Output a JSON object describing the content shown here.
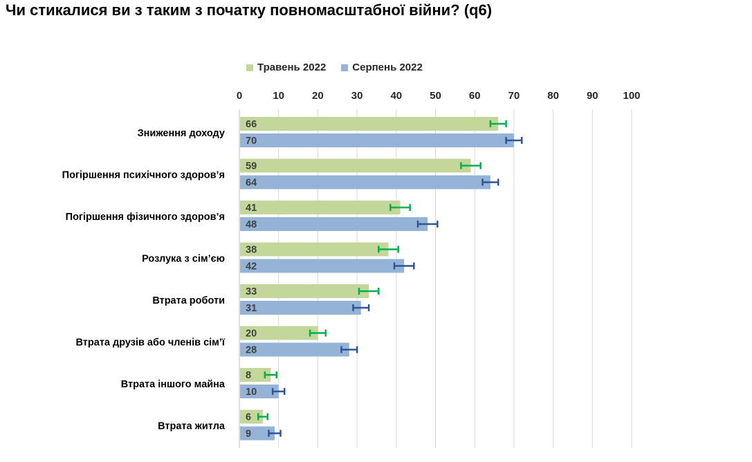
{
  "title": "Чи стикалися ви з таким з початку повномасштабної війни? (q6)",
  "chart_data": {
    "type": "bar",
    "orientation": "horizontal",
    "categories": [
      "Зниження доходу",
      "Погіршення психічного здоров’я",
      "Погіршення фізичного здоров’я",
      "Розлука з сім’єю",
      "Втрата роботи",
      "Втрата друзів або членів сім’ї",
      "Втрата іншого майна",
      "Втрата житла"
    ],
    "series": [
      {
        "name": "Травень 2022",
        "color": "#c4d79b",
        "error_color": "#00b050",
        "values": [
          66,
          59,
          41,
          38,
          33,
          20,
          8,
          6
        ],
        "error": [
          2,
          2.5,
          2.5,
          2.5,
          2.5,
          2,
          1.5,
          1.2
        ]
      },
      {
        "name": "Серпень 2022",
        "color": "#95b3d7",
        "error_color": "#2f5597",
        "values": [
          70,
          64,
          48,
          42,
          31,
          28,
          10,
          9
        ],
        "error": [
          2,
          2,
          2.5,
          2.5,
          2,
          2,
          1.5,
          1.5
        ]
      }
    ],
    "xlim": [
      0,
      100
    ],
    "xticks": [
      0,
      10,
      20,
      30,
      40,
      50,
      60,
      70,
      80,
      90,
      100
    ],
    "tick_labels": [
      "0",
      "10",
      "20",
      "30",
      "40",
      "50",
      "60",
      "70",
      "80",
      "90",
      "100"
    ],
    "grid": true,
    "legend_position": "top",
    "tick_position": "top"
  }
}
